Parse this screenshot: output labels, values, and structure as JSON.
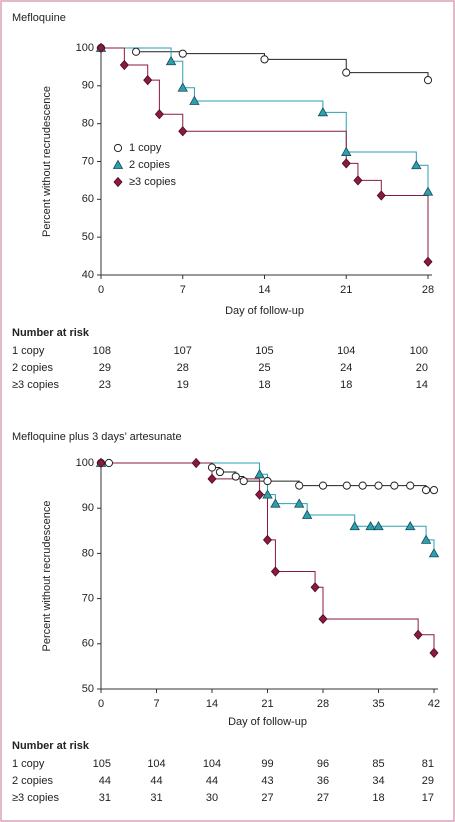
{
  "chart_data": [
    {
      "type": "step",
      "title": "Mefloquine",
      "xlabel": "Day of follow-up",
      "ylabel": "Percent without recrudescence",
      "xlim": [
        0,
        28
      ],
      "ylim": [
        40,
        100
      ],
      "xticks": [
        0,
        7,
        14,
        21,
        28
      ],
      "yticks": [
        40,
        50,
        60,
        70,
        80,
        90,
        100
      ],
      "legend": "center-left",
      "series": [
        {
          "name": "1 copy",
          "color": "#222222",
          "marker": "circle",
          "x": [
            0,
            3,
            7,
            14,
            21,
            28
          ],
          "values": [
            100,
            99,
            98.5,
            97,
            93.5,
            91.5
          ]
        },
        {
          "name": "2 copies",
          "color": "#2aa0b0",
          "marker": "triangle",
          "x": [
            0,
            6,
            7,
            8,
            19,
            21,
            27,
            28
          ],
          "values": [
            100,
            96.5,
            89.5,
            86,
            83,
            72.5,
            69,
            62
          ]
        },
        {
          "name": "≥3 copies",
          "color": "#8b1a3f",
          "marker": "diamond",
          "x": [
            0,
            2,
            4,
            5,
            7,
            21,
            22,
            24,
            28
          ],
          "values": [
            100,
            95.5,
            91.5,
            82.5,
            78,
            69.5,
            65,
            61,
            43.5
          ]
        }
      ],
      "risk_table": {
        "title": "Number at risk",
        "rows": [
          {
            "label": "1 copy",
            "values": [
              108,
              107,
              105,
              104,
              100
            ]
          },
          {
            "label": "2 copies",
            "values": [
              29,
              28,
              25,
              24,
              20
            ]
          },
          {
            "label": "≥3 copies",
            "values": [
              23,
              19,
              18,
              18,
              14
            ]
          }
        ]
      }
    },
    {
      "type": "step",
      "title": "Mefloquine plus 3 days’ artesunate",
      "xlabel": "Day of follow-up",
      "ylabel": "Percent without recrudescence",
      "xlim": [
        0,
        42
      ],
      "ylim": [
        50,
        100
      ],
      "xticks": [
        0,
        7,
        14,
        21,
        28,
        35,
        42
      ],
      "yticks": [
        50,
        60,
        70,
        80,
        90,
        100
      ],
      "series": [
        {
          "color": "#222222",
          "marker": "circle",
          "x": [
            0,
            1,
            14,
            15,
            17,
            18,
            21,
            25,
            28,
            31,
            33,
            35,
            37,
            39,
            41,
            42
          ],
          "values": [
            100,
            100,
            99,
            98,
            97,
            96,
            96,
            95,
            95,
            95,
            95,
            95,
            95,
            95,
            94,
            94
          ]
        },
        {
          "color": "#2aa0b0",
          "marker": "triangle",
          "x": [
            0,
            20,
            21,
            22,
            25,
            26,
            32,
            34,
            35,
            39,
            41,
            42
          ],
          "values": [
            100,
            97.5,
            93,
            91,
            91,
            88.5,
            86,
            86,
            86,
            86,
            83,
            80
          ]
        },
        {
          "color": "#8b1a3f",
          "marker": "diamond",
          "x": [
            0,
            12,
            14,
            20,
            21,
            22,
            27,
            28,
            40,
            42
          ],
          "values": [
            100,
            100,
            96.5,
            93,
            83,
            76,
            72.5,
            65.5,
            62,
            58
          ]
        }
      ],
      "risk_table": {
        "title": "Number at risk",
        "rows": [
          {
            "label": "1 copy",
            "values": [
              105,
              104,
              104,
              99,
              96,
              85,
              81
            ]
          },
          {
            "label": "2 copies",
            "values": [
              44,
              44,
              44,
              43,
              36,
              34,
              29
            ]
          },
          {
            "label": "≥3 copies",
            "values": [
              31,
              31,
              30,
              27,
              27,
              18,
              17
            ]
          }
        ]
      }
    }
  ]
}
